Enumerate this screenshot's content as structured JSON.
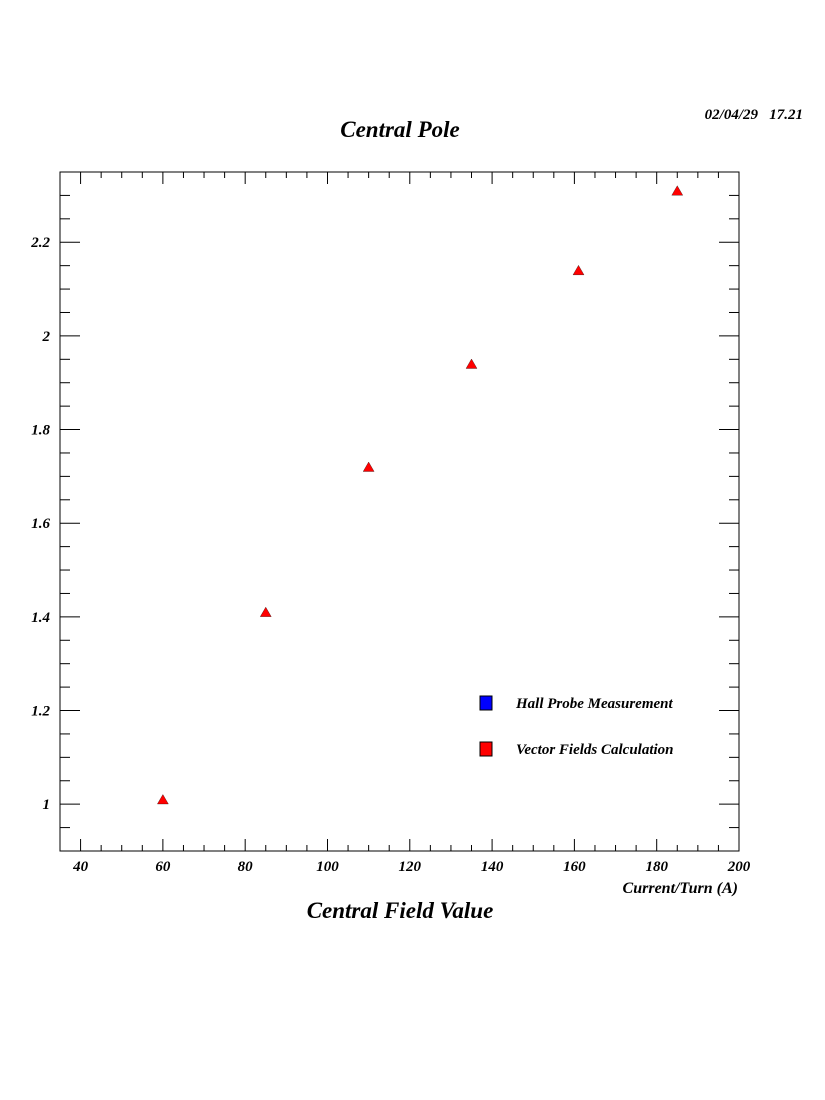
{
  "header": {
    "timestamp": "02/04/29   17.21",
    "title": "Central Pole"
  },
  "footer": {
    "title": "Central Field Value"
  },
  "chart_data": {
    "type": "scatter",
    "title": "Central Pole",
    "xlabel": "Current/Turn (A)",
    "ylabel": "",
    "xlim": [
      35,
      200
    ],
    "ylim": [
      0.9,
      2.35
    ],
    "x_ticks": [
      40,
      60,
      80,
      100,
      120,
      140,
      160,
      180,
      200
    ],
    "y_ticks": [
      1,
      1.2,
      1.4,
      1.6,
      1.8,
      2,
      2.2
    ],
    "x_minor_step": 5,
    "y_minor_step": 0.05,
    "grid": false,
    "legend_placement": "bottom-right",
    "series": [
      {
        "name": "Hall Probe Measurement",
        "color": "#0000ff",
        "marker": "square",
        "x": [],
        "y": []
      },
      {
        "name": "Vector Fields Calculation",
        "color": "#ff0000",
        "marker": "triangle",
        "x": [
          60,
          85,
          110,
          135,
          161,
          185
        ],
        "y": [
          1.01,
          1.41,
          1.72,
          1.94,
          2.14,
          2.31
        ]
      }
    ]
  }
}
